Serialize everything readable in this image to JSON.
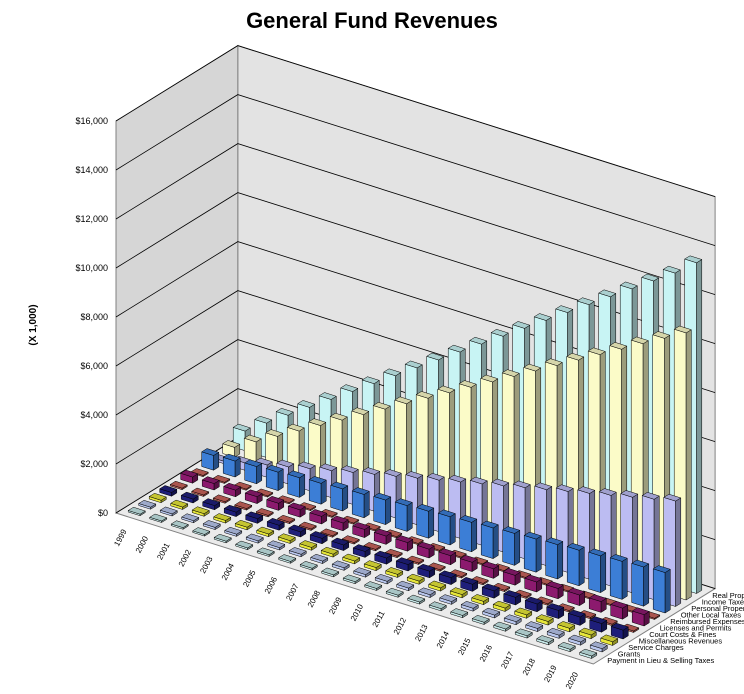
{
  "chart_data": {
    "type": "bar",
    "title": "General Fund Revenues",
    "ylabel": "(X 1,000)",
    "ylim": [
      0,
      16000
    ],
    "y_ticks": [
      "$0",
      "$2,000",
      "$4,000",
      "$6,000",
      "$8,000",
      "$10,000",
      "$12,000",
      "$14,000",
      "$16,000"
    ],
    "categories": [
      "1999",
      "2000",
      "2001",
      "2002",
      "2003",
      "2004",
      "2005",
      "2006",
      "2007",
      "2008",
      "2009",
      "2010",
      "2011",
      "2012",
      "2013",
      "2014",
      "2015",
      "2016",
      "2017",
      "2018",
      "2019",
      "2020"
    ],
    "grid": true,
    "series": [
      {
        "name": "Payment in Lieu & Selling Taxes",
        "color": "#c6e8e8",
        "values": [
          60,
          60,
          65,
          65,
          70,
          70,
          70,
          75,
          75,
          80,
          80,
          80,
          85,
          85,
          90,
          90,
          90,
          95,
          95,
          100,
          100,
          100
        ]
      },
      {
        "name": "Grants",
        "color": "#b9c7ee",
        "values": [
          80,
          85,
          85,
          90,
          90,
          95,
          95,
          100,
          100,
          105,
          105,
          110,
          110,
          115,
          115,
          120,
          120,
          125,
          125,
          130,
          130,
          135
        ]
      },
      {
        "name": "Service Charges",
        "color": "#e6e63a",
        "values": [
          100,
          100,
          105,
          105,
          110,
          110,
          115,
          115,
          120,
          120,
          125,
          125,
          130,
          130,
          135,
          135,
          140,
          140,
          145,
          145,
          150,
          150
        ]
      },
      {
        "name": "Miscellaneous Revenues",
        "color": "#1e1e7a",
        "values": [
          150,
          160,
          170,
          180,
          190,
          200,
          210,
          220,
          230,
          240,
          250,
          260,
          270,
          280,
          290,
          300,
          310,
          320,
          330,
          340,
          350,
          360
        ]
      },
      {
        "name": "Court Costs & Fines",
        "color": "#c8645c",
        "values": [
          60,
          60,
          60,
          60,
          60,
          60,
          60,
          60,
          60,
          60,
          60,
          60,
          60,
          60,
          60,
          60,
          60,
          60,
          60,
          60,
          60,
          60
        ]
      },
      {
        "name": "Licenses and Permits",
        "color": "#8c1a6e",
        "values": [
          250,
          260,
          270,
          280,
          290,
          300,
          310,
          320,
          330,
          340,
          350,
          360,
          370,
          380,
          390,
          400,
          410,
          420,
          430,
          440,
          450,
          460
        ]
      },
      {
        "name": "Reimbursed Expenses",
        "color": "#c8645c",
        "values": [
          50,
          50,
          50,
          50,
          50,
          50,
          50,
          50,
          50,
          50,
          50,
          50,
          50,
          50,
          50,
          50,
          50,
          50,
          50,
          50,
          50,
          50
        ]
      },
      {
        "name": "Other Local Taxes",
        "color": "#3c7ed6",
        "values": [
          600,
          650,
          700,
          750,
          800,
          850,
          900,
          950,
          1000,
          1050,
          1100,
          1150,
          1200,
          1250,
          1300,
          1350,
          1400,
          1450,
          1500,
          1550,
          1600,
          1650
        ]
      },
      {
        "name": "Personal Property Tax",
        "color": "#bcbcf2",
        "values": [
          100,
          300,
          500,
          700,
          900,
          1100,
          1300,
          1500,
          1700,
          1900,
          2100,
          2300,
          2500,
          2700,
          2900,
          3100,
          3300,
          3500,
          3700,
          3900,
          4100,
          4300
        ]
      },
      {
        "name": "Income Taxes",
        "color": "#fbfbc8",
        "values": [
          400,
          900,
          1400,
          1900,
          2400,
          2900,
          3400,
          3900,
          4400,
          4900,
          5400,
          5900,
          6400,
          6900,
          7400,
          7900,
          8400,
          8900,
          9400,
          9900,
          10400,
          10900
        ]
      },
      {
        "name": "Real Property Tax",
        "color": "#c8f4f4",
        "values": [
          800,
          1400,
          2000,
          2600,
          3200,
          3800,
          4400,
          5000,
          5600,
          6200,
          6800,
          7400,
          8000,
          8600,
          9200,
          9800,
          10400,
          11000,
          11600,
          12200,
          12800,
          13500
        ]
      }
    ]
  }
}
